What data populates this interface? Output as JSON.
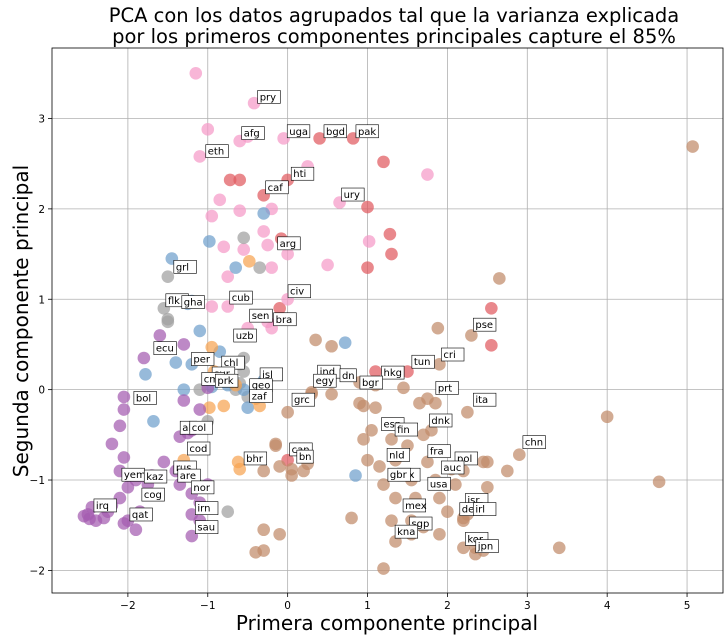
{
  "chart_data": {
    "type": "scatter",
    "title": "PCA con los datos agrupados tal que la varianza explicada\npor los primeros componentes principales capture el 85%",
    "xlabel": "Primera componente principal",
    "ylabel": "Segunda componente principal",
    "xlim": [
      -2.95,
      5.45
    ],
    "ylim": [
      -2.25,
      3.78
    ],
    "xticks": [
      -2,
      -1,
      0,
      1,
      2,
      3,
      4,
      5
    ],
    "yticks": [
      -2,
      -1,
      0,
      1,
      2,
      3
    ],
    "grid": true,
    "legend": "none",
    "series": [
      {
        "color": "#e05a5f",
        "points": [
          [
            0.4,
            2.78
          ],
          [
            0.82,
            2.78
          ],
          [
            1.2,
            2.52
          ],
          [
            -0.72,
            2.32
          ],
          [
            -0.6,
            2.32
          ],
          [
            0.0,
            2.32
          ],
          [
            -0.3,
            2.15
          ],
          [
            1.0,
            2.02
          ],
          [
            1.28,
            1.72
          ],
          [
            -0.08,
            1.67
          ],
          [
            1.3,
            1.5
          ],
          [
            1.0,
            1.35
          ],
          [
            -0.1,
            0.9
          ],
          [
            2.55,
            0.9
          ],
          [
            1.1,
            0.2
          ],
          [
            2.55,
            0.49
          ],
          [
            1.5,
            0.2
          ],
          [
            0.0,
            -0.78
          ]
        ]
      },
      {
        "color": "#f59ac8",
        "points": [
          [
            -1.15,
            3.5
          ],
          [
            -0.42,
            3.17
          ],
          [
            -1.0,
            2.88
          ],
          [
            -0.6,
            2.75
          ],
          [
            -0.5,
            2.8
          ],
          [
            -0.05,
            2.78
          ],
          [
            0.25,
            2.47
          ],
          [
            -1.1,
            2.58
          ],
          [
            0.65,
            2.07
          ],
          [
            1.75,
            2.38
          ],
          [
            -0.85,
            2.1
          ],
          [
            -0.95,
            1.92
          ],
          [
            -0.6,
            1.98
          ],
          [
            -0.3,
            1.75
          ],
          [
            -0.2,
            2.0
          ],
          [
            -0.8,
            1.58
          ],
          [
            -0.25,
            1.6
          ],
          [
            -0.55,
            1.55
          ],
          [
            0.5,
            1.38
          ],
          [
            -0.75,
            1.25
          ],
          [
            -0.2,
            1.35
          ],
          [
            0.0,
            1.5
          ],
          [
            1.02,
            1.64
          ],
          [
            -0.75,
            0.92
          ],
          [
            -0.95,
            0.92
          ],
          [
            -0.25,
            0.75
          ],
          [
            -0.5,
            0.68
          ],
          [
            0.0,
            1.0
          ],
          [
            -0.2,
            0.68
          ]
        ]
      },
      {
        "color": "#a0a0a0",
        "points": [
          [
            -0.55,
            1.68
          ],
          [
            -0.35,
            1.35
          ],
          [
            -1.5,
            0.78
          ],
          [
            -1.5,
            0.75
          ],
          [
            -1.5,
            1.25
          ],
          [
            -1.55,
            0.9
          ],
          [
            -0.55,
            0.35
          ],
          [
            -0.6,
            0.28
          ],
          [
            -0.55,
            0.2
          ],
          [
            -0.6,
            0.07
          ],
          [
            -0.65,
            0.0
          ],
          [
            -0.5,
            -0.08
          ],
          [
            -1.1,
            0.0
          ],
          [
            -1.0,
            -0.35
          ],
          [
            -0.75,
            -1.35
          ],
          [
            -0.3,
            0.06
          ]
        ]
      },
      {
        "color": "#6fa0cc",
        "points": [
          [
            -1.45,
            1.45
          ],
          [
            -0.98,
            1.64
          ],
          [
            -0.3,
            1.95
          ],
          [
            -0.65,
            1.35
          ],
          [
            -1.2,
            0.98
          ],
          [
            -1.25,
            0.95
          ],
          [
            -1.1,
            0.65
          ],
          [
            -1.4,
            0.3
          ],
          [
            -1.2,
            0.28
          ],
          [
            -0.85,
            0.42
          ],
          [
            -1.78,
            0.17
          ],
          [
            -0.55,
            0.0
          ],
          [
            -1.3,
            0.0
          ],
          [
            -0.75,
            0.05
          ],
          [
            -0.5,
            -0.2
          ],
          [
            -1.68,
            -0.35
          ],
          [
            -0.3,
            0.1
          ],
          [
            0.72,
            0.52
          ],
          [
            0.85,
            -0.95
          ],
          [
            -0.95,
            0.03
          ]
        ]
      },
      {
        "color": "#f7a452",
        "points": [
          [
            -0.48,
            1.42
          ],
          [
            -0.95,
            0.47
          ],
          [
            -0.92,
            0.2
          ],
          [
            -0.65,
            0.05
          ],
          [
            -0.4,
            -0.1
          ],
          [
            -0.35,
            -0.18
          ],
          [
            -0.8,
            -0.18
          ],
          [
            -0.98,
            -0.2
          ],
          [
            -0.62,
            -0.8
          ],
          [
            -0.6,
            -0.88
          ],
          [
            -1.3,
            -0.78
          ]
        ]
      },
      {
        "color": "#a45bb0",
        "points": [
          [
            -2.45,
            -1.3
          ],
          [
            -2.5,
            -1.38
          ],
          [
            -2.55,
            -1.4
          ],
          [
            -2.48,
            -1.43
          ],
          [
            -2.4,
            -1.45
          ],
          [
            -2.3,
            -1.42
          ],
          [
            -2.25,
            -1.35
          ],
          [
            -2.2,
            -1.28
          ],
          [
            -2.1,
            -1.2
          ],
          [
            -2.0,
            -1.08
          ],
          [
            -2.1,
            -0.9
          ],
          [
            -2.05,
            -0.75
          ],
          [
            -2.2,
            -0.6
          ],
          [
            -2.1,
            -0.4
          ],
          [
            -2.05,
            -0.22
          ],
          [
            -1.85,
            -1.35
          ],
          [
            -1.9,
            -1.55
          ],
          [
            -2.0,
            -1.45
          ],
          [
            -2.05,
            -1.48
          ],
          [
            -1.75,
            -1.05
          ],
          [
            -1.7,
            -0.95
          ],
          [
            -1.9,
            -1.0
          ],
          [
            -1.55,
            -0.8
          ],
          [
            -1.4,
            -0.9
          ],
          [
            -1.35,
            -1.05
          ],
          [
            -1.2,
            -1.15
          ],
          [
            -1.2,
            -1.38
          ],
          [
            -1.1,
            -1.45
          ],
          [
            -1.2,
            -1.62
          ],
          [
            -1.1,
            -1.25
          ],
          [
            -1.0,
            -1.05
          ],
          [
            -1.35,
            -0.52
          ],
          [
            -1.25,
            -0.48
          ],
          [
            -1.2,
            -0.45
          ],
          [
            -1.1,
            -0.22
          ],
          [
            -1.3,
            -0.12
          ],
          [
            -1.8,
            0.35
          ],
          [
            -1.6,
            0.6
          ],
          [
            -1.3,
            0.5
          ],
          [
            -1.0,
            0.02
          ],
          [
            -2.05,
            -0.08
          ]
        ]
      },
      {
        "color": "#c08a6a",
        "points": [
          [
            5.07,
            2.69
          ],
          [
            2.65,
            1.23
          ],
          [
            1.88,
            0.68
          ],
          [
            2.3,
            0.6
          ],
          [
            0.35,
            0.55
          ],
          [
            0.55,
            0.48
          ],
          [
            1.9,
            0.28
          ],
          [
            0.5,
            0.12
          ],
          [
            0.9,
            0.08
          ],
          [
            1.1,
            0.05
          ],
          [
            1.45,
            0.02
          ],
          [
            0.3,
            -0.03
          ],
          [
            0.55,
            -0.05
          ],
          [
            0.95,
            -0.18
          ],
          [
            1.1,
            -0.2
          ],
          [
            1.75,
            -0.1
          ],
          [
            1.85,
            -0.15
          ],
          [
            1.65,
            -0.15
          ],
          [
            2.25,
            -0.25
          ],
          [
            4.0,
            -0.3
          ],
          [
            1.3,
            -0.38
          ],
          [
            1.05,
            -0.45
          ],
          [
            0.95,
            -0.55
          ],
          [
            1.3,
            -0.55
          ],
          [
            1.7,
            -0.5
          ],
          [
            1.8,
            -0.45
          ],
          [
            1.5,
            -0.62
          ],
          [
            2.9,
            -0.72
          ],
          [
            2.5,
            -0.8
          ],
          [
            1.0,
            -0.78
          ],
          [
            1.15,
            -0.85
          ],
          [
            1.35,
            -0.78
          ],
          [
            1.75,
            -0.8
          ],
          [
            2.05,
            -0.88
          ],
          [
            2.2,
            -0.9
          ],
          [
            2.45,
            -0.8
          ],
          [
            2.75,
            -0.9
          ],
          [
            1.55,
            -1.0
          ],
          [
            1.85,
            -1.0
          ],
          [
            2.1,
            -1.05
          ],
          [
            2.5,
            -1.08
          ],
          [
            4.65,
            -1.02
          ],
          [
            1.2,
            -1.05
          ],
          [
            1.35,
            -1.2
          ],
          [
            1.6,
            -1.2
          ],
          [
            1.9,
            -1.2
          ],
          [
            2.3,
            -1.3
          ],
          [
            2.0,
            -1.35
          ],
          [
            0.8,
            -1.42
          ],
          [
            1.3,
            -1.45
          ],
          [
            1.55,
            -1.45
          ],
          [
            2.25,
            -1.38
          ],
          [
            2.2,
            -1.42
          ],
          [
            2.2,
            -1.45
          ],
          [
            1.9,
            -1.6
          ],
          [
            1.7,
            -1.52
          ],
          [
            1.55,
            -1.6
          ],
          [
            1.35,
            -1.68
          ],
          [
            2.2,
            -1.75
          ],
          [
            2.35,
            -1.75
          ],
          [
            2.45,
            -1.78
          ],
          [
            2.35,
            -1.82
          ],
          [
            3.4,
            -1.75
          ],
          [
            1.2,
            -1.98
          ],
          [
            0.3,
            -0.05
          ],
          [
            -0.15,
            -0.6
          ],
          [
            -0.1,
            -0.85
          ],
          [
            0.05,
            -0.88
          ],
          [
            -0.3,
            -0.9
          ],
          [
            -0.3,
            -1.55
          ],
          [
            -0.1,
            -1.6
          ],
          [
            -0.4,
            -1.8
          ],
          [
            -0.3,
            -1.78
          ],
          [
            0.25,
            -0.82
          ],
          [
            0.2,
            -0.9
          ],
          [
            0.05,
            -0.95
          ],
          [
            -0.15,
            -0.62
          ],
          [
            0.0,
            -0.25
          ],
          [
            0.9,
            -0.15
          ]
        ]
      }
    ],
    "annotations": [
      {
        "text": "pry",
        "x": -0.35,
        "y": 3.2
      },
      {
        "text": "afg",
        "x": -0.55,
        "y": 2.8
      },
      {
        "text": "uga",
        "x": 0.02,
        "y": 2.82
      },
      {
        "text": "bgd",
        "x": 0.48,
        "y": 2.82
      },
      {
        "text": "pak",
        "x": 0.88,
        "y": 2.82
      },
      {
        "text": "eth",
        "x": -1.0,
        "y": 2.6
      },
      {
        "text": "hti",
        "x": 0.07,
        "y": 2.35
      },
      {
        "text": "caf",
        "x": -0.25,
        "y": 2.2
      },
      {
        "text": "ury",
        "x": 0.7,
        "y": 2.12
      },
      {
        "text": "arg",
        "x": -0.1,
        "y": 1.58
      },
      {
        "text": "grl",
        "x": -1.4,
        "y": 1.32
      },
      {
        "text": "civ",
        "x": 0.03,
        "y": 1.05
      },
      {
        "text": "flk",
        "x": -1.5,
        "y": 0.95
      },
      {
        "text": "gha",
        "x": -1.3,
        "y": 0.93
      },
      {
        "text": "cub",
        "x": -0.7,
        "y": 0.98
      },
      {
        "text": "sen",
        "x": -0.45,
        "y": 0.78
      },
      {
        "text": "bra",
        "x": -0.15,
        "y": 0.74
      },
      {
        "text": "uzb",
        "x": -0.65,
        "y": 0.56
      },
      {
        "text": "pse",
        "x": 2.35,
        "y": 0.68
      },
      {
        "text": "ecu",
        "x": -1.65,
        "y": 0.42
      },
      {
        "text": "cri",
        "x": 1.95,
        "y": 0.35
      },
      {
        "text": "per",
        "x": -1.18,
        "y": 0.3
      },
      {
        "text": "chl",
        "x": -0.8,
        "y": 0.26,
        "color": "#e8000b"
      },
      {
        "text": "tun",
        "x": 1.58,
        "y": 0.27
      },
      {
        "text": "sur",
        "x": -0.92,
        "y": 0.14
      },
      {
        "text": "ind",
        "x": 0.4,
        "y": 0.16
      },
      {
        "text": "isl",
        "x": -0.32,
        "y": 0.13
      },
      {
        "text": "hkg",
        "x": 1.2,
        "y": 0.15
      },
      {
        "text": "cmr",
        "x": -1.05,
        "y": 0.08
      },
      {
        "text": "prk",
        "x": -0.88,
        "y": 0.06
      },
      {
        "text": "egy",
        "x": 0.35,
        "y": 0.06
      },
      {
        "text": "dn",
        "x": 0.68,
        "y": 0.12
      },
      {
        "text": "bgr",
        "x": 0.93,
        "y": 0.04
      },
      {
        "text": "geo",
        "x": -0.45,
        "y": 0.01
      },
      {
        "text": "prt",
        "x": 1.88,
        "y": -0.02
      },
      {
        "text": "zaf",
        "x": -0.45,
        "y": -0.11
      },
      {
        "text": "bol",
        "x": -1.9,
        "y": -0.13
      },
      {
        "text": "grc",
        "x": 0.08,
        "y": -0.15
      },
      {
        "text": "ita",
        "x": 2.35,
        "y": -0.15
      },
      {
        "text": "dnk",
        "x": 1.8,
        "y": -0.38
      },
      {
        "text": "esp",
        "x": 1.2,
        "y": -0.42
      },
      {
        "text": "al",
        "x": -1.32,
        "y": -0.46
      },
      {
        "text": "col",
        "x": -1.2,
        "y": -0.46
      },
      {
        "text": "fin",
        "x": 1.37,
        "y": -0.48
      },
      {
        "text": "chn",
        "x": 2.97,
        "y": -0.62
      },
      {
        "text": "cod",
        "x": -1.23,
        "y": -0.69
      },
      {
        "text": "can",
        "x": 0.05,
        "y": -0.7
      },
      {
        "text": "fra",
        "x": 1.78,
        "y": -0.72
      },
      {
        "text": "nld",
        "x": 1.27,
        "y": -0.76
      },
      {
        "text": "bhr",
        "x": -0.52,
        "y": -0.8
      },
      {
        "text": "bn",
        "x": 0.14,
        "y": -0.78
      },
      {
        "text": "pol",
        "x": 2.12,
        "y": -0.8
      },
      {
        "text": "rus",
        "x": -1.4,
        "y": -0.9
      },
      {
        "text": "auc",
        "x": 1.95,
        "y": -0.9
      },
      {
        "text": "are",
        "x": -1.35,
        "y": -0.99
      },
      {
        "text": "yem",
        "x": -2.05,
        "y": -0.98
      },
      {
        "text": "kaz",
        "x": -1.77,
        "y": -1.0
      },
      {
        "text": "blx",
        "x": 1.4,
        "y": -0.98
      },
      {
        "text": "gbr",
        "x": 1.28,
        "y": -0.98
      },
      {
        "text": "usa",
        "x": 1.78,
        "y": -1.08
      },
      {
        "text": "nor",
        "x": -1.18,
        "y": -1.12
      },
      {
        "text": "cog",
        "x": -1.8,
        "y": -1.2
      },
      {
        "text": "isr",
        "x": 2.25,
        "y": -1.26
      },
      {
        "text": "mex",
        "x": 1.47,
        "y": -1.32
      },
      {
        "text": "irq",
        "x": -2.4,
        "y": -1.32
      },
      {
        "text": "irn",
        "x": -1.13,
        "y": -1.35
      },
      {
        "text": "deu",
        "x": 2.18,
        "y": -1.36
      },
      {
        "text": "irl",
        "x": 2.35,
        "y": -1.36
      },
      {
        "text": "qat",
        "x": -1.95,
        "y": -1.42
      },
      {
        "text": "sgp",
        "x": 1.55,
        "y": -1.52
      },
      {
        "text": "sau",
        "x": -1.13,
        "y": -1.56
      },
      {
        "text": "kna",
        "x": 1.37,
        "y": -1.61
      },
      {
        "text": "kor",
        "x": 2.25,
        "y": -1.69
      },
      {
        "text": "jpn",
        "x": 2.38,
        "y": -1.77
      }
    ]
  }
}
